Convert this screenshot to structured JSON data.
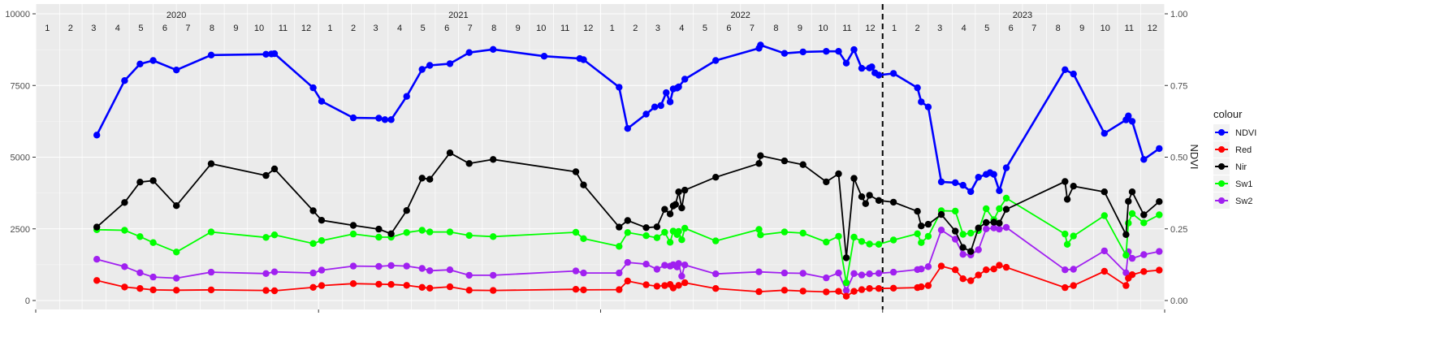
{
  "chart_data": {
    "type": "line",
    "x_unit": "date",
    "x_range": [
      "2020-01-01",
      "2024-01-01"
    ],
    "ylabel_right": "NDVI",
    "ylim_left": [
      0,
      10000
    ],
    "ylim_right": [
      0,
      1
    ],
    "yticks_left": [
      0,
      2500,
      5000,
      7500,
      10000
    ],
    "yticks_right": [
      0,
      0.25,
      0.5,
      0.75,
      1.0
    ],
    "ytick_labels_left": [
      "0",
      "2500",
      "5000",
      "7500",
      "10000"
    ],
    "ytick_labels_right": [
      "0.00",
      "0.25",
      "0.50",
      "0.75",
      "1.00"
    ],
    "year_labels": [
      {
        "date": "2020-07-01",
        "label": "2020"
      },
      {
        "date": "2021-07-01",
        "label": "2021"
      },
      {
        "date": "2022-07-01",
        "label": "2022"
      },
      {
        "date": "2023-07-01",
        "label": "2023"
      }
    ],
    "month_labels": [
      "1",
      "2",
      "3",
      "4",
      "5",
      "6",
      "7",
      "8",
      "9",
      "10",
      "11",
      "12"
    ],
    "vline_date": "2023-01-01",
    "grid": true,
    "legend": {
      "title": "colour",
      "position": "right"
    },
    "series": [
      {
        "name": "NDVI",
        "axis": "right",
        "color": "#0000ff",
        "x": [
          "2020-03-20",
          "2020-04-25",
          "2020-05-15",
          "2020-06-01",
          "2020-07-01",
          "2020-08-15",
          "2020-10-25",
          "2020-11-01",
          "2020-11-05",
          "2020-12-25",
          "2021-01-05",
          "2021-02-15",
          "2021-03-20",
          "2021-03-28",
          "2021-04-05",
          "2021-04-25",
          "2021-05-15",
          "2021-05-25",
          "2021-06-20",
          "2021-07-15",
          "2021-08-15",
          "2021-10-20",
          "2021-12-05",
          "2021-12-10",
          "2022-01-25",
          "2022-02-05",
          "2022-03-01",
          "2022-03-12",
          "2022-03-20",
          "2022-03-27",
          "2022-04-01",
          "2022-04-05",
          "2022-04-10",
          "2022-04-12",
          "2022-04-20",
          "2022-05-30",
          "2022-07-25",
          "2022-07-27",
          "2022-08-27",
          "2022-09-20",
          "2022-10-20",
          "2022-11-05",
          "2022-11-15",
          "2022-11-25",
          "2022-12-05",
          "2022-12-15",
          "2022-12-18",
          "2022-12-22",
          "2022-12-27",
          "2023-01-15",
          "2023-02-15",
          "2023-02-20",
          "2023-03-01",
          "2023-03-18",
          "2023-04-05",
          "2023-04-15",
          "2023-04-25",
          "2023-05-05",
          "2023-05-15",
          "2023-05-20",
          "2023-05-25",
          "2023-06-01",
          "2023-06-10",
          "2023-08-25",
          "2023-09-05",
          "2023-10-15",
          "2023-11-12",
          "2023-11-15",
          "2023-11-20",
          "2023-12-05",
          "2023-12-25"
        ],
        "y": [
          0.577,
          0.767,
          0.825,
          0.837,
          0.804,
          0.856,
          0.859,
          0.86,
          0.861,
          0.742,
          0.695,
          0.637,
          0.636,
          0.631,
          0.631,
          0.712,
          0.806,
          0.82,
          0.826,
          0.865,
          0.876,
          0.852,
          0.844,
          0.84,
          0.744,
          0.6,
          0.65,
          0.675,
          0.68,
          0.725,
          0.693,
          0.738,
          0.741,
          0.745,
          0.772,
          0.837,
          0.88,
          0.891,
          0.862,
          0.867,
          0.869,
          0.869,
          0.828,
          0.875,
          0.81,
          0.811,
          0.815,
          0.794,
          0.786,
          0.792,
          0.742,
          0.693,
          0.675,
          0.414,
          0.411,
          0.402,
          0.38,
          0.43,
          0.44,
          0.446,
          0.44,
          0.383,
          0.463,
          0.805,
          0.79,
          0.583,
          0.63,
          0.644,
          0.625,
          0.492,
          0.53
        ]
      },
      {
        "name": "Red",
        "axis": "left",
        "color": "#ff0000",
        "x": [
          "2020-03-20",
          "2020-04-25",
          "2020-05-15",
          "2020-06-01",
          "2020-07-01",
          "2020-08-15",
          "2020-10-25",
          "2020-11-05",
          "2020-12-25",
          "2021-01-05",
          "2021-02-15",
          "2021-03-20",
          "2021-04-05",
          "2021-04-25",
          "2021-05-15",
          "2021-05-25",
          "2021-06-20",
          "2021-07-15",
          "2021-08-15",
          "2021-11-30",
          "2021-12-10",
          "2022-01-25",
          "2022-02-05",
          "2022-03-01",
          "2022-03-15",
          "2022-03-25",
          "2022-04-01",
          "2022-04-05",
          "2022-04-12",
          "2022-04-20",
          "2022-05-30",
          "2022-07-25",
          "2022-08-27",
          "2022-09-20",
          "2022-10-20",
          "2022-11-05",
          "2022-11-15",
          "2022-11-25",
          "2022-12-05",
          "2022-12-15",
          "2022-12-27",
          "2023-01-15",
          "2023-02-15",
          "2023-02-20",
          "2023-03-01",
          "2023-03-18",
          "2023-04-05",
          "2023-04-15",
          "2023-04-25",
          "2023-05-05",
          "2023-05-15",
          "2023-05-25",
          "2023-06-01",
          "2023-06-10",
          "2023-08-25",
          "2023-09-05",
          "2023-10-15",
          "2023-11-12",
          "2023-11-15",
          "2023-11-20",
          "2023-12-05",
          "2023-12-25"
        ],
        "y": [
          700,
          470,
          420,
          370,
          360,
          370,
          350,
          340,
          460,
          520,
          590,
          570,
          560,
          530,
          460,
          430,
          480,
          360,
          350,
          390,
          370,
          380,
          680,
          550,
          500,
          520,
          560,
          440,
          530,
          620,
          420,
          310,
          360,
          330,
          300,
          320,
          150,
          320,
          380,
          420,
          420,
          430,
          450,
          480,
          520,
          1200,
          1070,
          760,
          690,
          890,
          1070,
          1100,
          1230,
          1160,
          450,
          520,
          1020,
          520,
          780,
          900,
          1010,
          1060
        ]
      },
      {
        "name": "Nir",
        "axis": "left",
        "color": "#000000",
        "x": [
          "2020-03-20",
          "2020-04-25",
          "2020-05-15",
          "2020-06-01",
          "2020-07-01",
          "2020-08-15",
          "2020-10-25",
          "2020-11-05",
          "2020-12-25",
          "2021-01-05",
          "2021-02-15",
          "2021-03-20",
          "2021-04-05",
          "2021-04-25",
          "2021-05-15",
          "2021-05-25",
          "2021-06-20",
          "2021-07-15",
          "2021-08-15",
          "2021-11-30",
          "2021-12-10",
          "2022-01-25",
          "2022-02-05",
          "2022-03-01",
          "2022-03-15",
          "2022-03-25",
          "2022-04-01",
          "2022-04-05",
          "2022-04-08",
          "2022-04-12",
          "2022-04-16",
          "2022-04-20",
          "2022-05-30",
          "2022-07-25",
          "2022-07-27",
          "2022-08-27",
          "2022-09-20",
          "2022-10-20",
          "2022-11-05",
          "2022-11-15",
          "2022-11-25",
          "2022-12-05",
          "2022-12-10",
          "2022-12-15",
          "2022-12-27",
          "2023-01-15",
          "2023-02-15",
          "2023-02-20",
          "2023-03-01",
          "2023-03-18",
          "2023-04-05",
          "2023-04-15",
          "2023-04-25",
          "2023-05-05",
          "2023-05-15",
          "2023-05-25",
          "2023-06-01",
          "2023-06-10",
          "2023-08-25",
          "2023-08-28",
          "2023-09-05",
          "2023-10-15",
          "2023-11-12",
          "2023-11-15",
          "2023-11-20",
          "2023-12-05",
          "2023-12-25"
        ],
        "y": [
          2560,
          3420,
          4130,
          4180,
          3310,
          4770,
          4360,
          4590,
          3130,
          2800,
          2620,
          2490,
          2330,
          3140,
          4270,
          4230,
          5150,
          4780,
          4920,
          4490,
          4030,
          2560,
          2790,
          2540,
          2570,
          3180,
          3020,
          3300,
          3350,
          3790,
          3230,
          3850,
          4300,
          4780,
          5050,
          4870,
          4740,
          4140,
          4420,
          1490,
          4260,
          3620,
          3380,
          3670,
          3490,
          3430,
          3110,
          2600,
          2660,
          3000,
          2420,
          1850,
          1710,
          2530,
          2720,
          2730,
          2700,
          3180,
          4150,
          3530,
          3990,
          3790,
          2300,
          3460,
          3790,
          2990,
          3450
        ]
      },
      {
        "name": "Sw1",
        "axis": "left",
        "color": "#00ff00",
        "x": [
          "2020-03-20",
          "2020-04-25",
          "2020-05-15",
          "2020-06-01",
          "2020-07-01",
          "2020-08-15",
          "2020-10-25",
          "2020-11-05",
          "2020-12-25",
          "2021-01-05",
          "2021-02-15",
          "2021-03-20",
          "2021-04-05",
          "2021-04-25",
          "2021-05-15",
          "2021-05-25",
          "2021-06-20",
          "2021-07-15",
          "2021-08-15",
          "2021-11-30",
          "2021-12-10",
          "2022-01-25",
          "2022-02-05",
          "2022-03-01",
          "2022-03-15",
          "2022-03-25",
          "2022-04-01",
          "2022-04-05",
          "2022-04-10",
          "2022-04-12",
          "2022-04-16",
          "2022-04-20",
          "2022-05-30",
          "2022-07-25",
          "2022-07-27",
          "2022-08-27",
          "2022-09-20",
          "2022-10-20",
          "2022-11-05",
          "2022-11-15",
          "2022-11-25",
          "2022-12-05",
          "2022-12-15",
          "2022-12-27",
          "2023-01-15",
          "2023-02-15",
          "2023-02-20",
          "2023-03-01",
          "2023-03-18",
          "2023-04-05",
          "2023-04-15",
          "2023-04-25",
          "2023-05-05",
          "2023-05-15",
          "2023-05-25",
          "2023-06-01",
          "2023-06-10",
          "2023-08-25",
          "2023-08-28",
          "2023-09-05",
          "2023-10-15",
          "2023-11-12",
          "2023-11-15",
          "2023-11-20",
          "2023-12-05",
          "2023-12-25"
        ],
        "y": [
          2470,
          2450,
          2230,
          2020,
          1690,
          2390,
          2200,
          2290,
          1990,
          2090,
          2320,
          2210,
          2210,
          2370,
          2450,
          2390,
          2390,
          2270,
          2230,
          2380,
          2160,
          1890,
          2370,
          2260,
          2190,
          2380,
          2030,
          2420,
          2300,
          2410,
          2120,
          2520,
          2080,
          2480,
          2290,
          2390,
          2350,
          2040,
          2240,
          620,
          2210,
          2060,
          1970,
          1960,
          2110,
          2330,
          2020,
          2240,
          3130,
          3120,
          2310,
          2350,
          2440,
          3200,
          2820,
          3200,
          3570,
          2320,
          1960,
          2250,
          2960,
          1580,
          2700,
          3030,
          2710,
          2990
        ]
      },
      {
        "name": "Sw2",
        "axis": "left",
        "color": "#a020f0",
        "x": [
          "2020-03-20",
          "2020-04-25",
          "2020-05-15",
          "2020-06-01",
          "2020-07-01",
          "2020-08-15",
          "2020-10-25",
          "2020-11-05",
          "2020-12-25",
          "2021-01-05",
          "2021-02-15",
          "2021-03-20",
          "2021-04-05",
          "2021-04-25",
          "2021-05-15",
          "2021-05-25",
          "2021-06-20",
          "2021-07-15",
          "2021-08-15",
          "2021-11-30",
          "2021-12-10",
          "2022-01-25",
          "2022-02-05",
          "2022-03-01",
          "2022-03-15",
          "2022-03-25",
          "2022-04-01",
          "2022-04-05",
          "2022-04-10",
          "2022-04-12",
          "2022-04-16",
          "2022-04-20",
          "2022-05-30",
          "2022-07-25",
          "2022-08-27",
          "2022-09-20",
          "2022-10-20",
          "2022-11-05",
          "2022-11-15",
          "2022-11-25",
          "2022-12-05",
          "2022-12-15",
          "2022-12-27",
          "2023-01-15",
          "2023-02-15",
          "2023-02-20",
          "2023-03-01",
          "2023-03-18",
          "2023-04-05",
          "2023-04-15",
          "2023-04-25",
          "2023-05-05",
          "2023-05-15",
          "2023-05-25",
          "2023-06-01",
          "2023-06-10",
          "2023-08-25",
          "2023-09-05",
          "2023-10-15",
          "2023-11-12",
          "2023-11-15",
          "2023-11-20",
          "2023-12-05",
          "2023-12-25"
        ],
        "y": [
          1440,
          1180,
          970,
          820,
          780,
          990,
          940,
          1000,
          960,
          1060,
          1200,
          1190,
          1220,
          1200,
          1120,
          1040,
          1070,
          880,
          880,
          1030,
          960,
          960,
          1330,
          1270,
          1090,
          1230,
          1200,
          1250,
          1170,
          1290,
          850,
          1240,
          930,
          1000,
          960,
          950,
          790,
          960,
          350,
          940,
          890,
          930,
          950,
          990,
          1080,
          1100,
          1180,
          2460,
          2140,
          1610,
          1590,
          1770,
          2500,
          2530,
          2490,
          2550,
          1070,
          1090,
          1730,
          970,
          1700,
          1470,
          1600,
          1710
        ]
      }
    ]
  }
}
